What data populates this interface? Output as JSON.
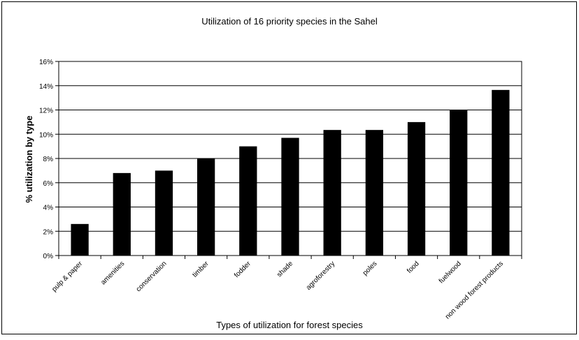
{
  "chart_data": {
    "type": "bar",
    "title": "Utilization of 16 priority species in the Sahel",
    "xlabel": "Types of utilization for forest species",
    "ylabel": "% utilization by type",
    "categories": [
      "pulp & paper",
      "amenities",
      "conservation",
      "timber",
      "fodder",
      "shade",
      "agroforestry",
      "poles",
      "food",
      "fuelwood",
      "non wood forest products"
    ],
    "values": [
      2.6,
      6.8,
      7.0,
      8.0,
      9.0,
      9.7,
      10.35,
      10.35,
      11.0,
      12.0,
      13.65
    ],
    "ylim": [
      0,
      16
    ],
    "yticks": [
      0,
      2,
      4,
      6,
      8,
      10,
      12,
      14,
      16
    ],
    "ytick_labels": [
      "0%",
      "2%",
      "4%",
      "6%",
      "8%",
      "10%",
      "12%",
      "14%",
      "16%"
    ],
    "grid": true,
    "legend": "none",
    "colors": {
      "bar": "#000000",
      "grid": "#000000",
      "background": "#ffffff"
    }
  }
}
